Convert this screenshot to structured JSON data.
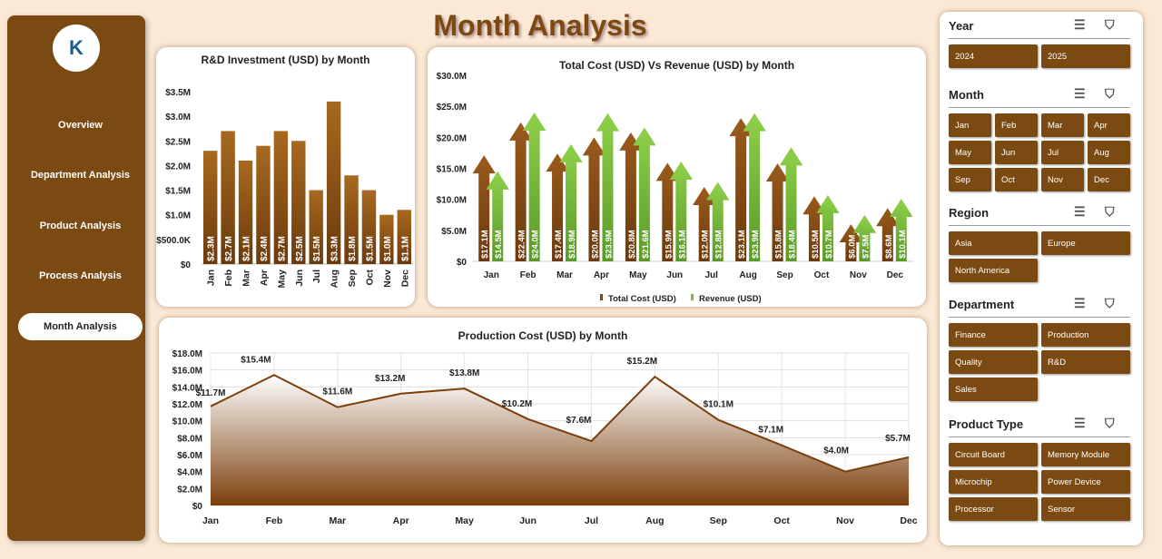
{
  "title": "Month Analysis",
  "sidebar": {
    "logo": "K",
    "items": [
      {
        "label": "Overview"
      },
      {
        "label": "Department Analysis"
      },
      {
        "label": "Product Analysis"
      },
      {
        "label": "Process Analysis"
      },
      {
        "label": "Month Analysis",
        "active": true
      }
    ]
  },
  "colors": {
    "brown": "#7b4a12",
    "green": "#7dbb3c",
    "bar": "#9a5a1c"
  },
  "chart_data": [
    {
      "type": "bar",
      "title": "R&D Investment (USD) by Month",
      "categories": [
        "Jan",
        "Feb",
        "Mar",
        "Apr",
        "May",
        "Jun",
        "Jul",
        "Aug",
        "Sep",
        "Oct",
        "Nov",
        "Dec"
      ],
      "values": [
        2.3,
        2.7,
        2.1,
        2.4,
        2.7,
        2.5,
        1.5,
        3.3,
        1.8,
        1.5,
        1.0,
        1.1
      ],
      "labels": [
        "$2.3M",
        "$2.7M",
        "$2.1M",
        "$2.4M",
        "$2.7M",
        "$2.5M",
        "$1.5M",
        "$3.3M",
        "$1.8M",
        "$1.5M",
        "$1.0M",
        "$1.1M"
      ],
      "ylim": [
        0,
        3.5
      ],
      "yticks": [
        "$0",
        "$500.0K",
        "$1.0M",
        "$1.5M",
        "$2.0M",
        "$2.5M",
        "$3.0M",
        "$3.5M"
      ]
    },
    {
      "type": "bar",
      "title": "Total Cost (USD) Vs Revenue (USD) by Month",
      "categories": [
        "Jan",
        "Feb",
        "Mar",
        "Apr",
        "May",
        "Jun",
        "Jul",
        "Aug",
        "Sep",
        "Oct",
        "Nov",
        "Dec"
      ],
      "series": [
        {
          "name": "Total Cost (USD)",
          "values": [
            17.1,
            22.4,
            17.4,
            20.0,
            20.8,
            15.9,
            12.0,
            23.1,
            15.8,
            10.5,
            6.0,
            8.6
          ],
          "labels": [
            "$17.1M",
            "$22.4M",
            "$17.4M",
            "$20.0M",
            "$20.8M",
            "$15.9M",
            "$12.0M",
            "$23.1M",
            "$15.8M",
            "$10.5M",
            "$6.0M",
            "$8.6M"
          ]
        },
        {
          "name": "Revenue (USD)",
          "values": [
            14.5,
            24.0,
            18.9,
            23.9,
            21.6,
            16.1,
            12.8,
            23.9,
            18.4,
            10.7,
            7.5,
            10.1
          ],
          "labels": [
            "$14.5M",
            "$24.0M",
            "$18.9M",
            "$23.9M",
            "$21.6M",
            "$16.1M",
            "$12.8M",
            "$23.9M",
            "$18.4M",
            "$10.7M",
            "$7.5M",
            "$10.1M"
          ]
        }
      ],
      "ylim": [
        0,
        30
      ],
      "yticks": [
        "$0",
        "$5.0M",
        "$10.0M",
        "$15.0M",
        "$20.0M",
        "$25.0M",
        "$30.0M"
      ],
      "legend": "bottom"
    },
    {
      "type": "area",
      "title": "Production Cost (USD) by Month",
      "categories": [
        "Jan",
        "Feb",
        "Mar",
        "Apr",
        "May",
        "Jun",
        "Jul",
        "Aug",
        "Sep",
        "Oct",
        "Nov",
        "Dec"
      ],
      "values": [
        11.7,
        15.4,
        11.6,
        13.2,
        13.8,
        10.2,
        7.6,
        15.2,
        10.1,
        7.1,
        4.0,
        5.7
      ],
      "labels": [
        "$11.7M",
        "$15.4M",
        "$11.6M",
        "$13.2M",
        "$13.8M",
        "$10.2M",
        "$7.6M",
        "$15.2M",
        "$10.1M",
        "$7.1M",
        "$4.0M",
        "$5.7M"
      ],
      "ylim": [
        0,
        18
      ],
      "yticks": [
        "$0",
        "$2.0M",
        "$4.0M",
        "$6.0M",
        "$8.0M",
        "$10.0M",
        "$12.0M",
        "$14.0M",
        "$16.0M",
        "$18.0M"
      ],
      "grid": true
    }
  ],
  "slicers": [
    {
      "title": "Year",
      "items": [
        "2024",
        "2025"
      ]
    },
    {
      "title": "Month",
      "items": [
        "Jan",
        "Feb",
        "Mar",
        "Apr",
        "May",
        "Jun",
        "Jul",
        "Aug",
        "Sep",
        "Oct",
        "Nov",
        "Dec"
      ]
    },
    {
      "title": "Region",
      "items": [
        "Asia",
        "Europe",
        "North America"
      ]
    },
    {
      "title": "Department",
      "items": [
        "Finance",
        "Production",
        "Quality",
        "R&D",
        "Sales"
      ]
    },
    {
      "title": "Product Type",
      "items": [
        "Circuit Board",
        "Memory Module",
        "Microchip",
        "Power Device",
        "Processor",
        "Sensor"
      ]
    }
  ],
  "icons": {
    "multi_select": "multi-select-icon",
    "clear_filter": "clear-filter-icon"
  }
}
